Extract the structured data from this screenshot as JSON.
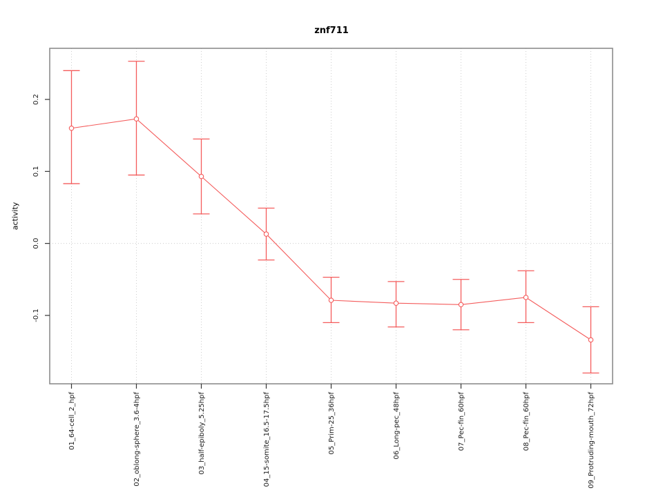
{
  "page": {
    "background": "#ffffff"
  },
  "chart_data": {
    "type": "line",
    "title": "znf711",
    "xlabel": "",
    "ylabel": "activity",
    "legend": "none",
    "categories": [
      "01_64-cell_2_hpf",
      "02_oblong-sphere_3.6-4hpf",
      "03_half-epiboly_5.25hpf",
      "04_15-somite_16.5-17.5hpf",
      "05_Prim-25_36hpf",
      "06_Long-pec_48hpf",
      "07_Pec-fin_60hpf",
      "08_Pec-fin_60hpf",
      "09_Protruding-mouth_72hpf"
    ],
    "series": [
      {
        "name": "activity",
        "values": [
          0.16,
          0.173,
          0.093,
          0.013,
          -0.079,
          -0.083,
          -0.085,
          -0.075,
          -0.134
        ],
        "upper": [
          0.24,
          0.253,
          0.145,
          0.049,
          -0.047,
          -0.053,
          -0.05,
          -0.038,
          -0.088
        ],
        "lower": [
          0.083,
          0.095,
          0.041,
          -0.023,
          -0.11,
          -0.116,
          -0.12,
          -0.11,
          -0.18
        ]
      }
    ],
    "ylim": [
      -0.195,
      0.271
    ],
    "yticks": [
      {
        "value": -0.1,
        "label": "-0.1"
      },
      {
        "value": 0.0,
        "label": "0.0"
      },
      {
        "value": 0.1,
        "label": "0.1"
      },
      {
        "value": 0.2,
        "label": "0.2"
      }
    ],
    "grid": {
      "vertical_at_categories": true,
      "horizontal_at_zero": true,
      "style": "dotted"
    },
    "marker": "open-circle",
    "colors": {
      "series": "#f45b5b",
      "grid": "#cccccc",
      "box": "#8c8c8c",
      "tick": "#333333",
      "text": "#1a1a1a",
      "marker_fill": "#ffffff"
    }
  }
}
